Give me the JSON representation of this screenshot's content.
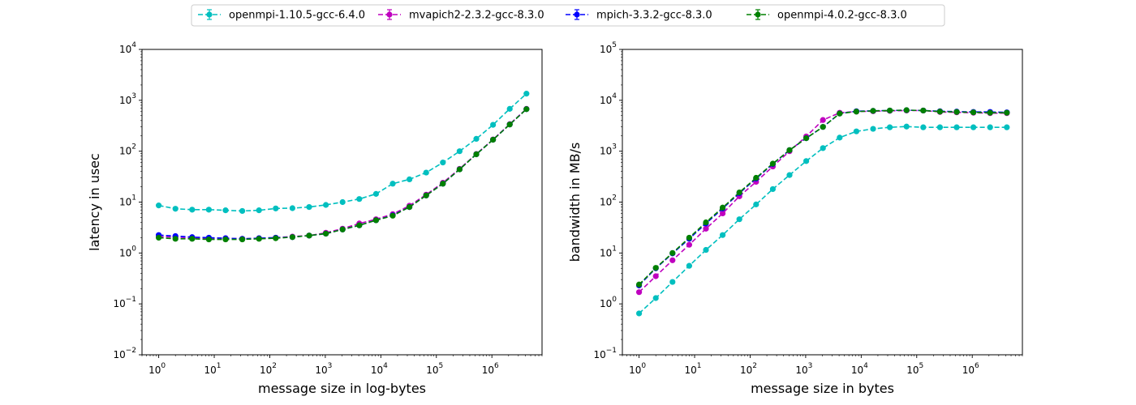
{
  "legend": {
    "location": "top-center",
    "entries": [
      {
        "name": "openmpi-1.10.5-gcc-6.4.0",
        "color": "#00bfbf"
      },
      {
        "name": "mvapich2-2.3.2-gcc-8.3.0",
        "color": "#bf00bf"
      },
      {
        "name": "mpich-3.3.2-gcc-8.3.0",
        "color": "#0000ff"
      },
      {
        "name": "openmpi-4.0.2-gcc-8.3.0",
        "color": "#008000"
      }
    ]
  },
  "chart_data": [
    {
      "type": "line",
      "xlabel": "message size in log-bytes",
      "ylabel": "latency in usec",
      "xscale": "log",
      "yscale": "log",
      "xlim": [
        0.5,
        8000000
      ],
      "ylim": [
        0.01,
        10000
      ],
      "xticks": [
        {
          "base": "10",
          "exp": "0"
        },
        {
          "base": "10",
          "exp": "1"
        },
        {
          "base": "10",
          "exp": "2"
        },
        {
          "base": "10",
          "exp": "3"
        },
        {
          "base": "10",
          "exp": "4"
        },
        {
          "base": "10",
          "exp": "5"
        },
        {
          "base": "10",
          "exp": "6"
        }
      ],
      "yticks": [
        {
          "base": "10",
          "exp": "−2"
        },
        {
          "base": "10",
          "exp": "−1"
        },
        {
          "base": "10",
          "exp": "0"
        },
        {
          "base": "10",
          "exp": "1"
        },
        {
          "base": "10",
          "exp": "2"
        },
        {
          "base": "10",
          "exp": "3"
        },
        {
          "base": "10",
          "exp": "4"
        }
      ],
      "x": [
        1,
        2,
        4,
        8,
        16,
        32,
        64,
        128,
        256,
        512,
        1024,
        2048,
        4096,
        8192,
        16384,
        32768,
        65536,
        131072,
        262144,
        524288,
        1048576,
        2097152,
        4194304
      ],
      "series": [
        {
          "name": "openmpi-1.10.5-gcc-6.4.0",
          "color": "#00bfbf",
          "values": [
            8.6,
            7.4,
            7.1,
            7.1,
            6.9,
            6.7,
            6.9,
            7.5,
            7.6,
            8.0,
            8.8,
            10.0,
            11.5,
            14.5,
            23.0,
            28.0,
            38.0,
            60.0,
            100.0,
            175.0,
            330.0,
            680.0,
            1350.0
          ]
        },
        {
          "name": "mvapich2-2.3.2-gcc-8.3.0",
          "color": "#bf00bf",
          "values": [
            2.1,
            2.05,
            2.0,
            1.95,
            1.95,
            1.9,
            1.95,
            2.0,
            2.1,
            2.2,
            2.5,
            3.0,
            3.8,
            4.6,
            5.8,
            8.5,
            14.0,
            24.0,
            45.0,
            88.0,
            170.0,
            340.0,
            680.0
          ]
        },
        {
          "name": "mpich-3.3.2-gcc-8.3.0",
          "color": "#0000ff",
          "values": [
            2.25,
            2.15,
            2.05,
            2.0,
            1.95,
            1.9,
            1.95,
            2.0,
            2.05,
            2.2,
            2.4,
            2.9,
            3.5,
            4.4,
            5.5,
            8.0,
            13.5,
            23.0,
            44.0,
            87.0,
            168.0,
            335.0,
            670.0
          ]
        },
        {
          "name": "openmpi-4.0.2-gcc-8.3.0",
          "color": "#008000",
          "values": [
            2.0,
            1.9,
            1.9,
            1.85,
            1.85,
            1.85,
            1.9,
            1.95,
            2.05,
            2.2,
            2.4,
            2.9,
            3.5,
            4.4,
            5.4,
            8.0,
            13.5,
            23.0,
            44.0,
            87.0,
            168.0,
            335.0,
            670.0
          ]
        }
      ]
    },
    {
      "type": "line",
      "xlabel": "message size in bytes",
      "ylabel": "bandwidth in MB/s",
      "xscale": "log",
      "yscale": "log",
      "xlim": [
        0.5,
        8000000
      ],
      "ylim": [
        0.1,
        100000
      ],
      "xticks": [
        {
          "base": "10",
          "exp": "0"
        },
        {
          "base": "10",
          "exp": "1"
        },
        {
          "base": "10",
          "exp": "2"
        },
        {
          "base": "10",
          "exp": "3"
        },
        {
          "base": "10",
          "exp": "4"
        },
        {
          "base": "10",
          "exp": "5"
        },
        {
          "base": "10",
          "exp": "6"
        }
      ],
      "yticks": [
        {
          "base": "10",
          "exp": "−1"
        },
        {
          "base": "10",
          "exp": "0"
        },
        {
          "base": "10",
          "exp": "1"
        },
        {
          "base": "10",
          "exp": "2"
        },
        {
          "base": "10",
          "exp": "3"
        },
        {
          "base": "10",
          "exp": "4"
        },
        {
          "base": "10",
          "exp": "5"
        }
      ],
      "x": [
        1,
        2,
        4,
        8,
        16,
        32,
        64,
        128,
        256,
        512,
        1024,
        2048,
        4096,
        8192,
        16384,
        32768,
        65536,
        131072,
        262144,
        524288,
        1048576,
        2097152,
        4194304
      ],
      "series": [
        {
          "name": "openmpi-1.10.5-gcc-6.4.0",
          "color": "#00bfbf",
          "values": [
            0.65,
            1.3,
            2.7,
            5.6,
            11.5,
            22.5,
            46.0,
            90.0,
            180.0,
            340.0,
            640.0,
            1150.0,
            1850.0,
            2450.0,
            2750.0,
            2950.0,
            3050.0,
            2950.0,
            2950.0,
            2950.0,
            2950.0,
            2950.0,
            2950.0
          ]
        },
        {
          "name": "mvapich2-2.3.2-gcc-8.3.0",
          "color": "#bf00bf",
          "values": [
            1.7,
            3.5,
            7.2,
            14.5,
            30.0,
            60.0,
            130.0,
            250.0,
            500.0,
            1000.0,
            1950.0,
            4100.0,
            5700.0,
            6000.0,
            6100.0,
            6200.0,
            6300.0,
            6300.0,
            5900.0,
            5800.0,
            5700.0,
            5600.0,
            5600.0
          ]
        },
        {
          "name": "mpich-3.3.2-gcc-8.3.0",
          "color": "#0000ff",
          "values": [
            2.3,
            5.0,
            9.8,
            19.0,
            38.0,
            75.0,
            150.0,
            290.0,
            560.0,
            1050.0,
            1800.0,
            3000.0,
            5500.0,
            6100.0,
            6200.0,
            6300.0,
            6400.0,
            6300.0,
            6100.0,
            6000.0,
            5900.0,
            5900.0,
            5800.0
          ]
        },
        {
          "name": "openmpi-4.0.2-gcc-8.3.0",
          "color": "#008000",
          "values": [
            2.4,
            5.1,
            10.0,
            20.0,
            40.0,
            78.0,
            155.0,
            300.0,
            570.0,
            1050.0,
            1800.0,
            3000.0,
            5500.0,
            6000.0,
            6200.0,
            6300.0,
            6400.0,
            6300.0,
            6000.0,
            5900.0,
            5800.0,
            5700.0,
            5700.0
          ]
        }
      ]
    }
  ]
}
